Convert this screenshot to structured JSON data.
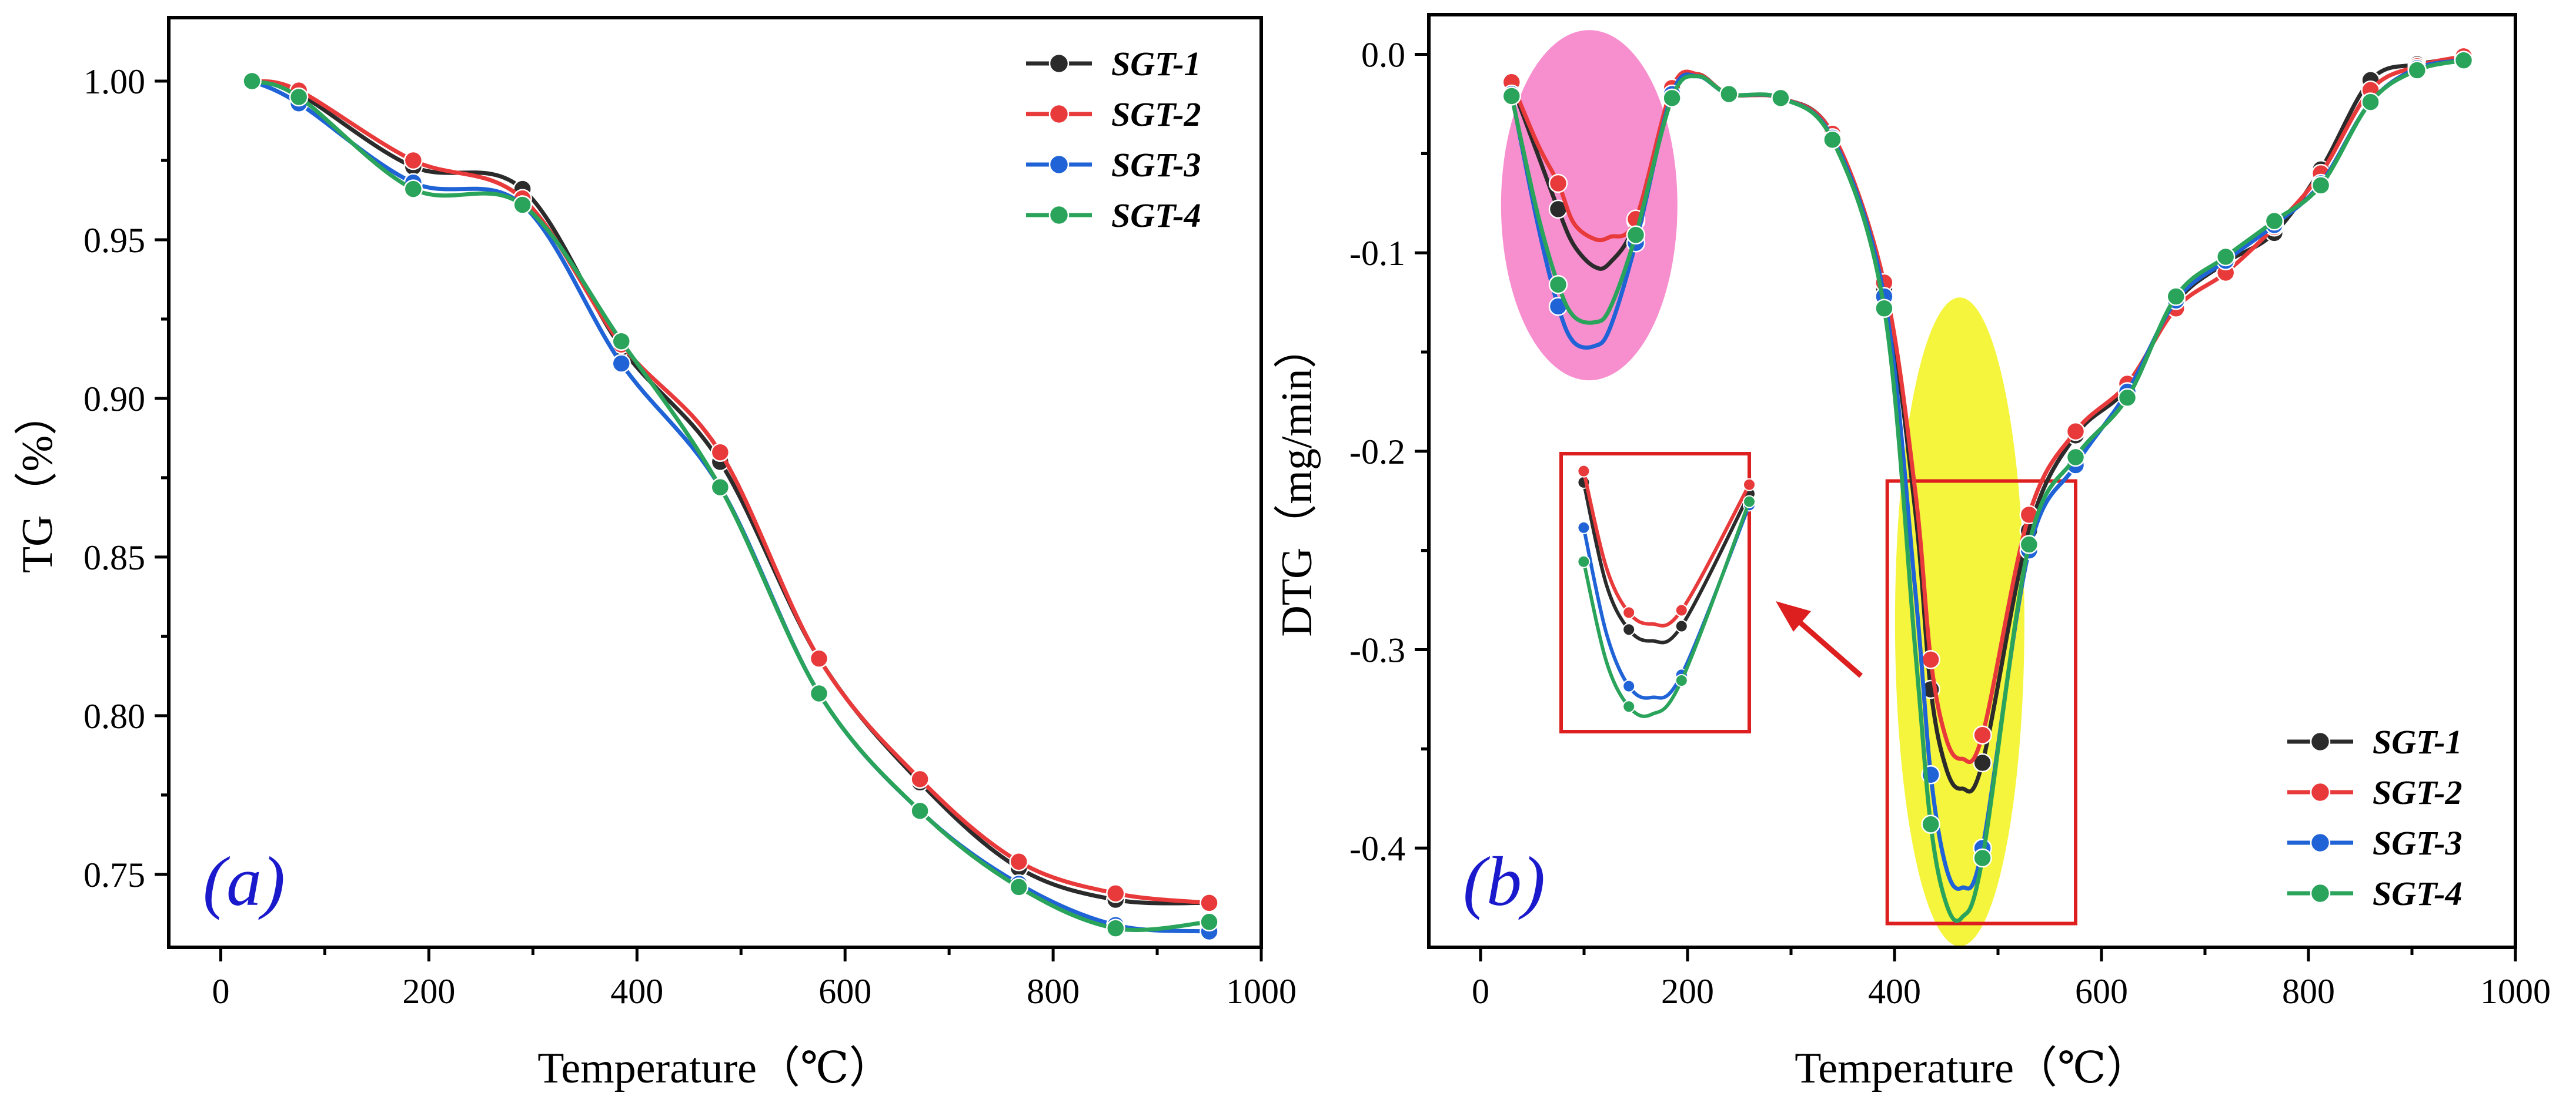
{
  "colors": {
    "SGT-1": "#2b2b2b",
    "SGT-2": "#e83a3a",
    "SGT-3": "#1f63d6",
    "SGT-4": "#2aa35b",
    "highlight_pink": "#f78fcf",
    "highlight_yellow": "#f4f53c",
    "zoom_box": "#dd1f1f",
    "panel_label": "#1a1acc"
  },
  "chart_data": [
    {
      "id": "a",
      "type": "line",
      "panel_label": "(a)",
      "xlabel": "Temperature（℃）",
      "ylabel": "TG（%）",
      "xlim": [
        -50,
        1000
      ],
      "ylim": [
        0.727,
        1.02
      ],
      "xticks": [
        0,
        200,
        400,
        600,
        800,
        1000
      ],
      "yticks": [
        0.75,
        0.8,
        0.85,
        0.9,
        0.95,
        1.0
      ],
      "ytick_labels": [
        "0.75",
        "0.80",
        "0.85",
        "0.90",
        "0.95",
        "1.00"
      ],
      "xtick_labels": [
        "0",
        "200",
        "400",
        "600",
        "800",
        "1000"
      ],
      "legend_position": "top-right",
      "series": [
        {
          "name": "SGT-1",
          "x": [
            30,
            75,
            185,
            290,
            385,
            480,
            575,
            672,
            767,
            860,
            950
          ],
          "y": [
            1.0,
            0.996,
            0.973,
            0.966,
            0.916,
            0.88,
            0.818,
            0.779,
            0.752,
            0.742,
            0.741
          ]
        },
        {
          "name": "SGT-2",
          "x": [
            30,
            75,
            185,
            290,
            385,
            480,
            575,
            672,
            767,
            860,
            950
          ],
          "y": [
            1.0,
            0.997,
            0.975,
            0.963,
            0.917,
            0.883,
            0.818,
            0.78,
            0.754,
            0.744,
            0.741
          ]
        },
        {
          "name": "SGT-3",
          "x": [
            30,
            75,
            185,
            290,
            385,
            480,
            575,
            672,
            767,
            860,
            950
          ],
          "y": [
            1.0,
            0.993,
            0.968,
            0.961,
            0.911,
            0.872,
            0.807,
            0.77,
            0.747,
            0.734,
            0.732
          ]
        },
        {
          "name": "SGT-4",
          "x": [
            30,
            75,
            185,
            290,
            385,
            480,
            575,
            672,
            767,
            860,
            950
          ],
          "y": [
            1.0,
            0.995,
            0.966,
            0.961,
            0.918,
            0.872,
            0.807,
            0.77,
            0.746,
            0.733,
            0.735
          ]
        }
      ]
    },
    {
      "id": "b",
      "type": "line",
      "panel_label": "(b)",
      "xlabel": "Temperature（℃）",
      "ylabel": "DTG（mg/min）",
      "xlim": [
        -50,
        1000
      ],
      "ylim": [
        -0.45,
        0.02
      ],
      "xticks": [
        0,
        200,
        400,
        600,
        800,
        1000
      ],
      "yticks": [
        0.0,
        -0.1,
        -0.2,
        -0.3,
        -0.4
      ],
      "ytick_labels": [
        "0.0",
        "-0.1",
        "-0.2",
        "-0.3",
        "-0.4"
      ],
      "xtick_labels": [
        "0",
        "200",
        "400",
        "600",
        "800",
        "1000"
      ],
      "legend_position": "bottom-right",
      "series": [
        {
          "name": "SGT-1",
          "x": [
            30,
            55,
            75,
            90,
            110,
            125,
            150,
            185,
            210,
            240,
            290,
            340,
            390,
            420,
            435,
            450,
            465,
            485,
            530,
            575,
            625,
            672,
            720,
            767,
            812,
            860,
            905,
            950
          ],
          "y": [
            -0.015,
            -0.05,
            -0.078,
            -0.096,
            -0.107,
            -0.105,
            -0.084,
            -0.018,
            -0.01,
            -0.02,
            -0.022,
            -0.04,
            -0.118,
            -0.23,
            -0.32,
            -0.36,
            -0.37,
            -0.357,
            -0.24,
            -0.192,
            -0.168,
            -0.125,
            -0.105,
            -0.09,
            -0.058,
            -0.013,
            -0.005,
            -0.002
          ]
        },
        {
          "name": "SGT-2",
          "x": [
            30,
            55,
            75,
            90,
            110,
            125,
            150,
            185,
            210,
            240,
            290,
            340,
            390,
            420,
            435,
            450,
            465,
            485,
            530,
            575,
            625,
            672,
            720,
            767,
            812,
            860,
            905,
            950
          ],
          "y": [
            -0.014,
            -0.045,
            -0.065,
            -0.085,
            -0.093,
            -0.092,
            -0.083,
            -0.017,
            -0.01,
            -0.02,
            -0.022,
            -0.04,
            -0.115,
            -0.22,
            -0.305,
            -0.345,
            -0.355,
            -0.343,
            -0.232,
            -0.19,
            -0.166,
            -0.128,
            -0.11,
            -0.087,
            -0.06,
            -0.018,
            -0.006,
            -0.001
          ]
        },
        {
          "name": "SGT-3",
          "x": [
            30,
            55,
            75,
            90,
            110,
            125,
            150,
            185,
            210,
            240,
            290,
            340,
            390,
            420,
            435,
            450,
            465,
            485,
            530,
            575,
            625,
            672,
            720,
            767,
            812,
            860,
            905,
            950
          ],
          "y": [
            -0.02,
            -0.085,
            -0.127,
            -0.145,
            -0.147,
            -0.138,
            -0.095,
            -0.02,
            -0.011,
            -0.02,
            -0.022,
            -0.042,
            -0.122,
            -0.27,
            -0.363,
            -0.41,
            -0.42,
            -0.4,
            -0.25,
            -0.207,
            -0.17,
            -0.124,
            -0.104,
            -0.086,
            -0.065,
            -0.024,
            -0.007,
            -0.003
          ]
        },
        {
          "name": "SGT-4",
          "x": [
            30,
            55,
            75,
            90,
            110,
            125,
            150,
            185,
            210,
            240,
            290,
            340,
            390,
            420,
            435,
            450,
            465,
            485,
            530,
            575,
            625,
            672,
            720,
            767,
            812,
            860,
            905,
            950
          ],
          "y": [
            -0.021,
            -0.08,
            -0.116,
            -0.132,
            -0.135,
            -0.128,
            -0.091,
            -0.022,
            -0.011,
            -0.02,
            -0.022,
            -0.043,
            -0.128,
            -0.3,
            -0.388,
            -0.428,
            -0.435,
            -0.405,
            -0.247,
            -0.203,
            -0.173,
            -0.122,
            -0.102,
            -0.084,
            -0.066,
            -0.024,
            -0.008,
            -0.003
          ]
        }
      ]
    }
  ]
}
